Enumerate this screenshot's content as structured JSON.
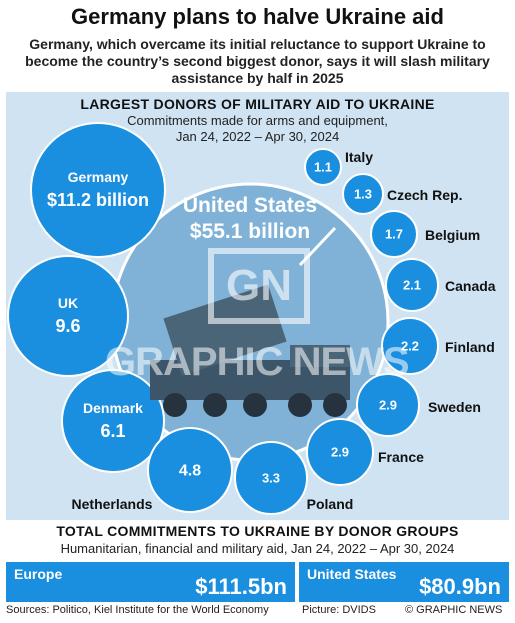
{
  "header": {
    "title": "Germany plans to halve Ukraine aid",
    "subtitle": "Germany, which overcame its initial reluctance to support Ukraine to become the country’s second biggest donor, says it will slash military assistance by half in 2025"
  },
  "section1": {
    "title": "LARGEST DONORS OF MILITARY AID TO UKRAINE",
    "subtitle_line1": "Commitments made for arms and equipment,",
    "subtitle_line2": "Jan 24, 2022 – Apr 30, 2024"
  },
  "chart_data": {
    "type": "bubble",
    "unit": "billion",
    "points": [
      {
        "name": "United States",
        "value": 55.1,
        "label": "$55.1 billion"
      },
      {
        "name": "Germany",
        "value": 11.2,
        "label": "$11.2 billion"
      },
      {
        "name": "UK",
        "value": 9.6,
        "label": "9.6"
      },
      {
        "name": "Denmark",
        "value": 6.1,
        "label": "6.1"
      },
      {
        "name": "Netherlands",
        "value": 4.8,
        "label": "4.8"
      },
      {
        "name": "Poland",
        "value": 3.3,
        "label": "3.3"
      },
      {
        "name": "France",
        "value": 2.9,
        "label": "2.9"
      },
      {
        "name": "Sweden",
        "value": 2.9,
        "label": "2.9"
      },
      {
        "name": "Finland",
        "value": 2.2,
        "label": "2.2"
      },
      {
        "name": "Canada",
        "value": 2.1,
        "label": "2.1"
      },
      {
        "name": "Belgium",
        "value": 1.7,
        "label": "1.7"
      },
      {
        "name": "Czech Rep.",
        "value": 1.3,
        "label": "1.3"
      },
      {
        "name": "Italy",
        "value": 1.1,
        "label": "1.1"
      }
    ]
  },
  "section2": {
    "title": "TOTAL COMMITMENTS TO UKRAINE BY DONOR GROUPS",
    "subtitle": "Humanitarian, financial and military aid, Jan 24, 2022 – Apr 30, 2024",
    "groups": [
      {
        "name": "Europe",
        "value_label": "$111.5bn",
        "value": 111.5
      },
      {
        "name": "United States",
        "value_label": "$80.9bn",
        "value": 80.9
      }
    ]
  },
  "footer": {
    "sources": "Sources: Politico, Kiel Institute for the World Economy",
    "picture": "Picture: DVIDS",
    "copyright": "© GRAPHIC NEWS"
  },
  "watermark": {
    "logo": "GN",
    "text": "GRAPHIC NEWS"
  },
  "colors": {
    "bubble": "#1a8fdf",
    "panel": "#cfe3f2",
    "center": "#7fb2d6"
  }
}
